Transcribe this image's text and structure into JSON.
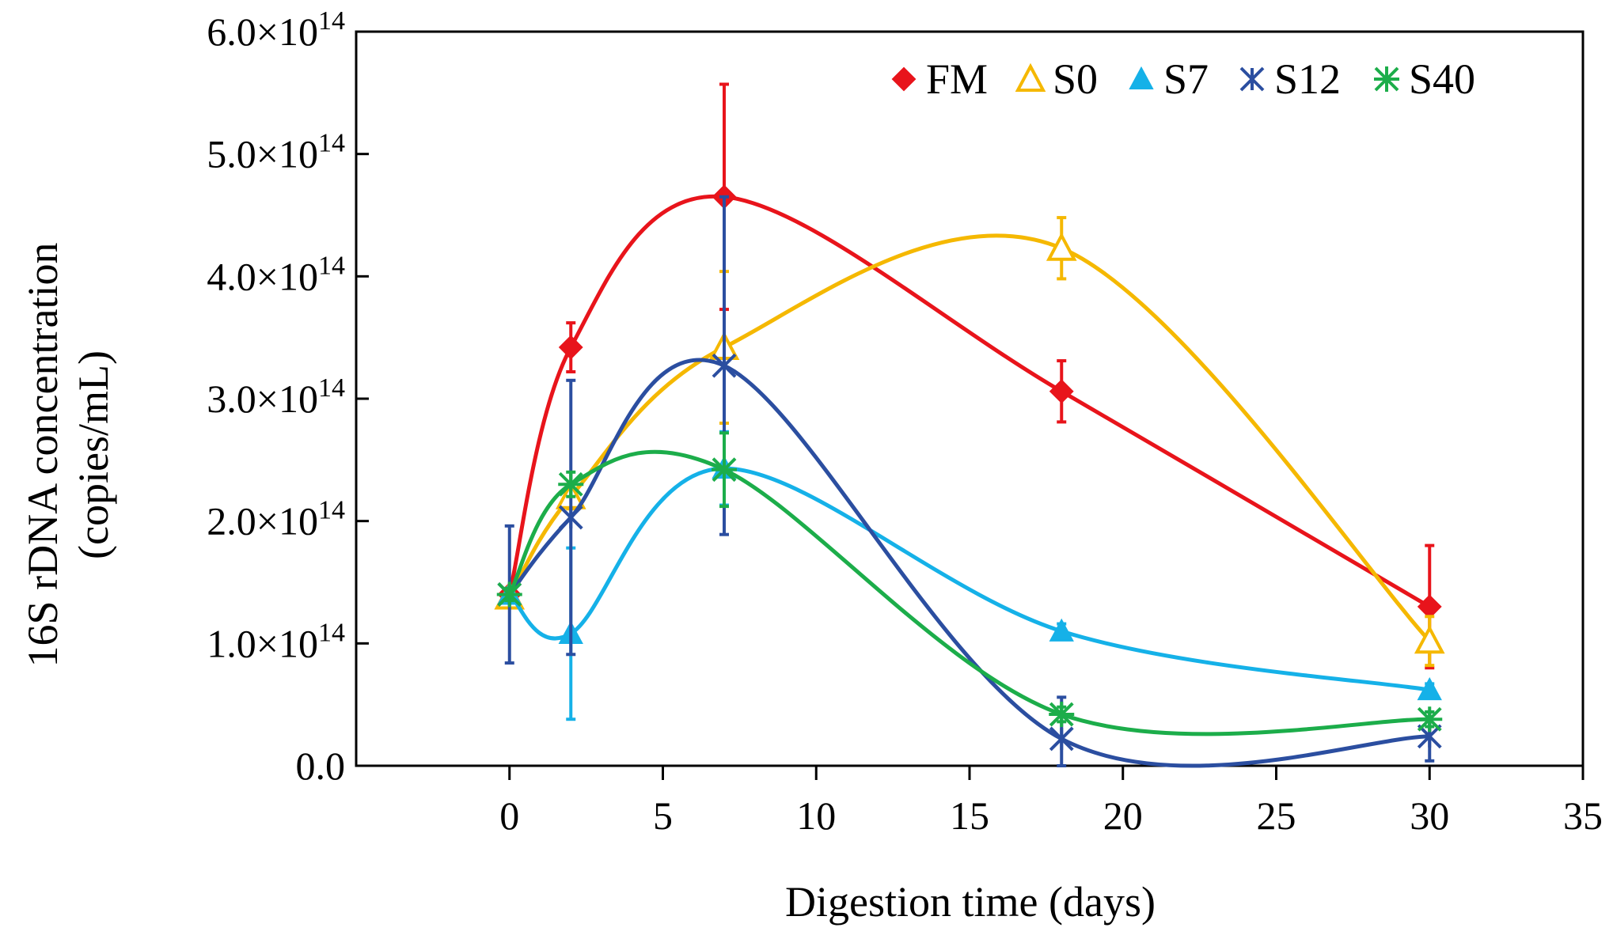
{
  "chart_data": {
    "type": "line",
    "xlabel": "Digestion time (days)",
    "ylabel_line1": "16S rDNA concentration",
    "ylabel_line2": "(copies/mL)",
    "xlim": [
      -5,
      35
    ],
    "ylim": [
      0,
      600000000000000.0
    ],
    "x_ticks": [
      0,
      5,
      10,
      15,
      20,
      25,
      30,
      35
    ],
    "y_ticks": [
      {
        "value": 0,
        "mantissa": "0.0",
        "exponent": ""
      },
      {
        "value": 100000000000000.0,
        "mantissa": "1.0×10",
        "exponent": "14"
      },
      {
        "value": 200000000000000.0,
        "mantissa": "2.0×10",
        "exponent": "14"
      },
      {
        "value": 300000000000000.0,
        "mantissa": "3.0×10",
        "exponent": "14"
      },
      {
        "value": 400000000000000.0,
        "mantissa": "4.0×10",
        "exponent": "14"
      },
      {
        "value": 500000000000000.0,
        "mantissa": "5.0×10",
        "exponent": "14"
      },
      {
        "value": 600000000000000.0,
        "mantissa": "6.0×10",
        "exponent": "14"
      }
    ],
    "legend_position": "top-right",
    "series": [
      {
        "name": "FM",
        "color": "#e8141b",
        "marker": "diamond",
        "x": [
          0,
          2,
          7,
          18,
          30
        ],
        "values": [
          140000000000000.0,
          342000000000000.0,
          465000000000000.0,
          306000000000000.0,
          130000000000000.0
        ],
        "error": [
          5000000000000.0,
          20000000000000.0,
          92000000000000.0,
          25000000000000.0,
          50000000000000.0
        ]
      },
      {
        "name": "S0",
        "color": "#f5b800",
        "marker": "triangle-open",
        "x": [
          0,
          2,
          7,
          18,
          30
        ],
        "values": [
          138000000000000.0,
          220000000000000.0,
          342000000000000.0,
          423000000000000.0,
          102000000000000.0
        ],
        "error": [
          5000000000000.0,
          10000000000000.0,
          62000000000000.0,
          25000000000000.0,
          20000000000000.0
        ]
      },
      {
        "name": "S7",
        "color": "#15b1e8",
        "marker": "triangle-filled",
        "x": [
          0,
          2,
          7,
          18,
          30
        ],
        "values": [
          140000000000000.0,
          108000000000000.0,
          243000000000000.0,
          110000000000000.0,
          62000000000000.0
        ],
        "error": [
          5000000000000.0,
          70000000000000.0,
          30000000000000.0,
          6000000000000.0,
          5000000000000.0
        ]
      },
      {
        "name": "S12",
        "color": "#2b4ea0",
        "marker": "star",
        "x": [
          0,
          2,
          7,
          18,
          30
        ],
        "values": [
          140000000000000.0,
          203000000000000.0,
          327000000000000.0,
          22000000000000.0,
          24000000000000.0
        ],
        "error": [
          56000000000000.0,
          112000000000000.0,
          138000000000000.0,
          34000000000000.0,
          20000000000000.0
        ]
      },
      {
        "name": "S40",
        "color": "#1cad4a",
        "marker": "asterisk",
        "x": [
          0,
          2,
          7,
          18,
          30
        ],
        "values": [
          140000000000000.0,
          230000000000000.0,
          242000000000000.0,
          42000000000000.0,
          38000000000000.0
        ],
        "error": [
          5000000000000.0,
          10000000000000.0,
          30000000000000.0,
          6000000000000.0,
          6000000000000.0
        ]
      }
    ]
  }
}
